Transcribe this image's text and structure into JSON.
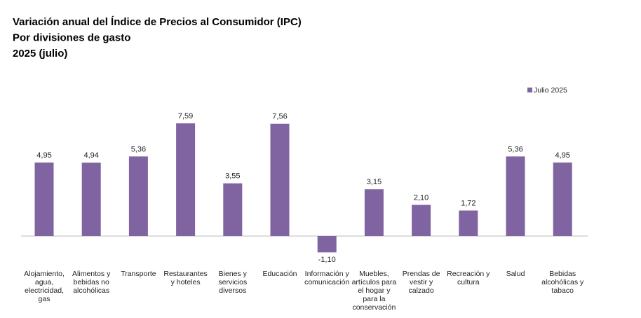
{
  "chart_data": {
    "type": "bar",
    "title": [
      "Variación anual del Índice de Precios al Consumidor (IPC)",
      "Por divisiones de gasto",
      "2025 (julio)"
    ],
    "categories": [
      "Alojamiento, agua, electricidad, gas",
      "Alimentos y bebidas no alcohólicas",
      "Transporte",
      "Restaurantes y hoteles",
      "Bienes y servicios diversos",
      "Educación",
      "Información y comunicación",
      "Muebles, artículos para el hogar y para la conservación",
      "Prendas de vestir y calzado",
      "Recreación y cultura",
      "Salud",
      "Bebidas alcohólicas y tabaco"
    ],
    "series": [
      {
        "name": "Julio 2025",
        "color": "#8064a2",
        "values": [
          4.95,
          4.94,
          5.36,
          7.59,
          3.55,
          7.56,
          -1.1,
          3.15,
          2.1,
          1.72,
          5.36,
          4.95
        ],
        "value_labels": [
          "4,95",
          "4,94",
          "5,36",
          "7,59",
          "3,55",
          "7,56",
          "-1,10",
          "3,15",
          "2,10",
          "1,72",
          "5,36",
          "4,95"
        ]
      }
    ],
    "legend": "top-right"
  }
}
